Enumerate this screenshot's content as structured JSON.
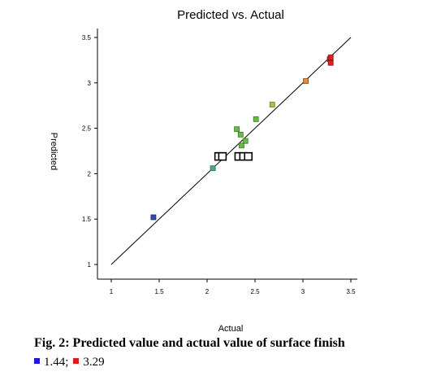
{
  "chart_data": {
    "type": "scatter",
    "title": "Predicted vs. Actual",
    "xlabel": "Actual",
    "ylabel": "Predicted",
    "xlim": [
      1,
      3.5
    ],
    "ylim": [
      1,
      3.5
    ],
    "xticks": [
      1,
      1.5,
      2,
      2.5,
      3,
      3.5
    ],
    "xtick_labels": [
      "1",
      "1.5",
      "2",
      "2.5",
      "3",
      "3.5"
    ],
    "yticks": [
      1,
      1.5,
      2,
      2.5,
      3,
      3.5
    ],
    "ytick_labels": [
      "1",
      "1.5",
      "2",
      "2.5",
      "3",
      "3.5"
    ],
    "reference_line": {
      "from": [
        1,
        1
      ],
      "to": [
        3.5,
        3.5
      ]
    },
    "grid": false,
    "points": [
      {
        "x": 1.44,
        "y": 1.52,
        "fill": "#2f4fa8",
        "stroke": "#1a2a66"
      },
      {
        "x": 2.06,
        "y": 2.06,
        "fill": "#4aa88a",
        "stroke": "#2b6a55"
      },
      {
        "x": 2.31,
        "y": 2.49,
        "fill": "#6bb84a",
        "stroke": "#3d7a25"
      },
      {
        "x": 2.35,
        "y": 2.43,
        "fill": "#6bb84a",
        "stroke": "#3d7a25"
      },
      {
        "x": 2.36,
        "y": 2.31,
        "fill": "#6bb84a",
        "stroke": "#3d7a25"
      },
      {
        "x": 2.4,
        "y": 2.36,
        "fill": "#6bb84a",
        "stroke": "#3d7a25"
      },
      {
        "x": 2.51,
        "y": 2.6,
        "fill": "#6bb84a",
        "stroke": "#3d7a25"
      },
      {
        "x": 2.68,
        "y": 2.76,
        "fill": "#a9c43a",
        "stroke": "#6a7d1f"
      },
      {
        "x": 3.03,
        "y": 3.02,
        "fill": "#e08a3a",
        "stroke": "#8a4a15"
      },
      {
        "x": 3.28,
        "y": 3.26,
        "fill": "#e02020",
        "stroke": "#8a0f0f"
      },
      {
        "x": 3.29,
        "y": 3.22,
        "fill": "#e02020",
        "stroke": "#8a0f0f"
      },
      {
        "x": 3.29,
        "y": 3.28,
        "fill": "#e02020",
        "stroke": "#8a0f0f"
      }
    ],
    "highlighted_points": [
      {
        "x": 2.12,
        "y": 2.19
      },
      {
        "x": 2.16,
        "y": 2.19
      },
      {
        "x": 2.33,
        "y": 2.19
      },
      {
        "x": 2.38,
        "y": 2.19
      },
      {
        "x": 2.43,
        "y": 2.19
      }
    ],
    "colors": {
      "axis": "#000000",
      "reference_line": "#000000",
      "highlight_box": "#000000"
    }
  },
  "caption": "Fig. 2: Predicted value and actual value of surface finish",
  "legend": [
    {
      "value": "1.44",
      "color": "#1a1adb"
    },
    {
      "value": "3.29",
      "color": "#d81b1b"
    }
  ],
  "legend_separator": ";"
}
